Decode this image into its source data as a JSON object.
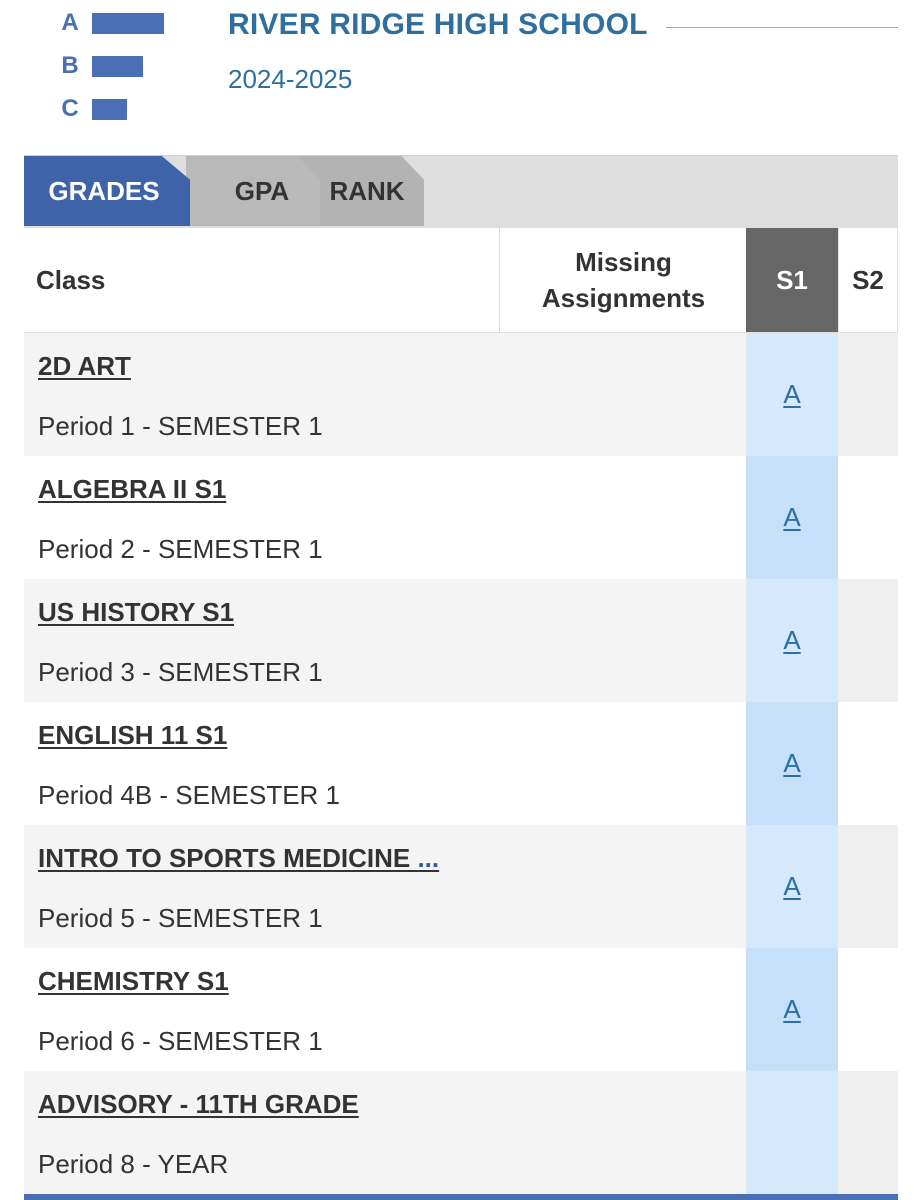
{
  "logo": {
    "letters": [
      "A",
      "B",
      "C"
    ]
  },
  "header": {
    "school_name": "RIVER RIDGE HIGH SCHOOL",
    "school_year": "2024-2025"
  },
  "tabs": [
    {
      "label": "GRADES",
      "active": true
    },
    {
      "label": "GPA",
      "active": false
    },
    {
      "label": "RANK",
      "active": false
    }
  ],
  "table": {
    "headers": {
      "class": "Class",
      "missing": "Missing Assignments",
      "s1": "S1",
      "s2": "S2"
    },
    "rows": [
      {
        "name": "2D ART",
        "ellipsis": "",
        "period": "Period 1 - SEMESTER 1",
        "missing": "",
        "s1": "A",
        "s2": ""
      },
      {
        "name": "ALGEBRA II S1",
        "ellipsis": "",
        "period": "Period 2 - SEMESTER 1",
        "missing": "",
        "s1": "A",
        "s2": ""
      },
      {
        "name": "US HISTORY S1",
        "ellipsis": "",
        "period": "Period 3 - SEMESTER 1",
        "missing": "",
        "s1": "A",
        "s2": ""
      },
      {
        "name": "ENGLISH 11 S1",
        "ellipsis": "",
        "period": "Period 4B - SEMESTER 1",
        "missing": "",
        "s1": "A",
        "s2": ""
      },
      {
        "name": "INTRO TO SPORTS MEDICINE ",
        "ellipsis": "...",
        "period": "Period 5 - SEMESTER 1",
        "missing": "",
        "s1": "A",
        "s2": ""
      },
      {
        "name": "CHEMISTRY S1",
        "ellipsis": "",
        "period": "Period 6 - SEMESTER 1",
        "missing": "",
        "s1": "A",
        "s2": ""
      },
      {
        "name": "ADVISORY - 11TH GRADE",
        "ellipsis": "",
        "period": "Period 8 - YEAR",
        "missing": "",
        "s1": "",
        "s2": ""
      }
    ]
  },
  "colors": {
    "brand_blue": "#3e63a8",
    "title_blue": "#2f6f9f",
    "s1_header": "#666666",
    "s1_cell": "#d6e8fb"
  }
}
